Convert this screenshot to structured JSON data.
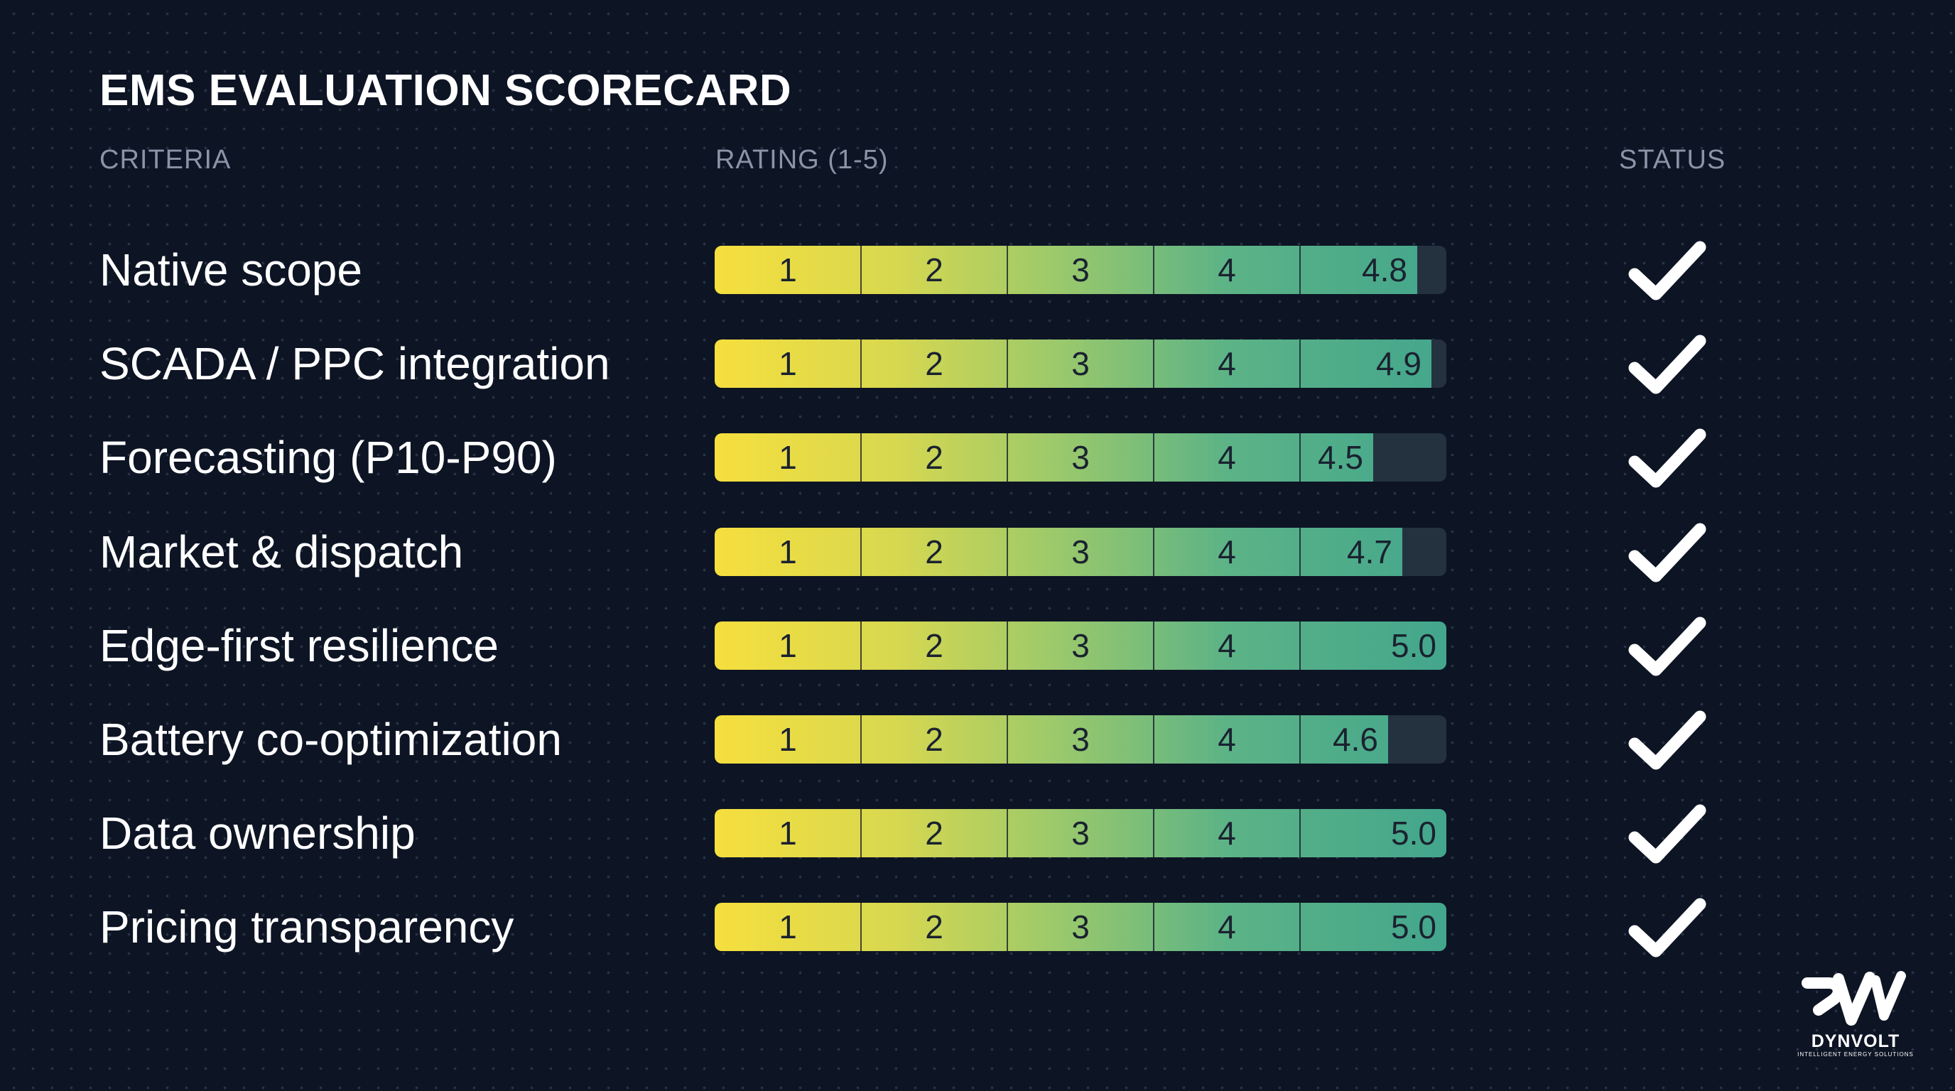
{
  "title": "EMS EVALUATION SCORECARD",
  "headers": {
    "criteria": "CRITERIA",
    "rating": "RATING (1-5)",
    "status": "STATUS"
  },
  "chart_data": {
    "type": "bar",
    "title": "EMS EVALUATION SCORECARD",
    "xlabel": "RATING (1-5)",
    "ylabel": "CRITERIA",
    "xlim": [
      0,
      5
    ],
    "scale_labels": [
      "1",
      "2",
      "3",
      "4"
    ],
    "categories": [
      "Native scope",
      "SCADA / PPC integration",
      "Forecasting (P10-P90)",
      "Market & dispatch",
      "Edge-first resilience",
      "Battery co-optimization",
      "Data ownership",
      "Pricing transparency"
    ],
    "values": [
      4.8,
      4.9,
      4.5,
      4.7,
      5.0,
      4.6,
      5.0,
      5.0
    ],
    "value_labels": [
      "4.8",
      "4.9",
      "4.5",
      "4.7",
      "5.0",
      "4.6",
      "5.0",
      "5.0"
    ],
    "status": [
      "check",
      "check",
      "check",
      "check",
      "check",
      "check",
      "check",
      "check"
    ],
    "colors": {
      "low": "#f6df3e",
      "mid": "#9cc96b",
      "high": "#43a68c",
      "track": "#243240",
      "check": "#ffffff"
    }
  },
  "status_icon": "checkmark-icon",
  "logo": {
    "name": "DYNVOLT",
    "tagline": "INTELLIGENT ENERGY SOLUTIONS"
  },
  "colors": {
    "background": "#0d1424",
    "header_text": "#8b93a7",
    "text": "#ffffff"
  }
}
